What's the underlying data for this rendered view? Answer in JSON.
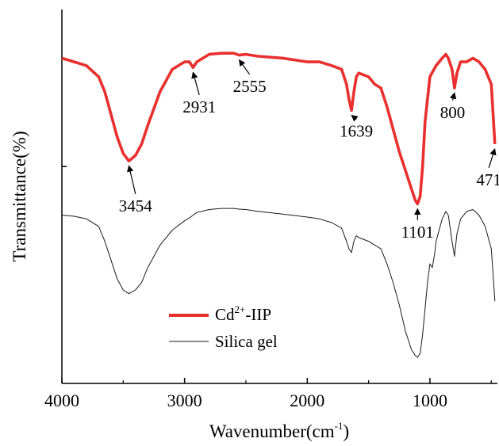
{
  "chart_data": {
    "type": "line",
    "title": "",
    "xlabel": "Wavenumber(cm",
    "xlabel_sup": "-1",
    "xlabel_close": ")",
    "ylabel": "Transmittance(%)",
    "xlim": [
      4000,
      450
    ],
    "ylim": [
      0,
      100
    ],
    "x_reversed": true,
    "xticks": [
      4000,
      3000,
      2000,
      1000
    ],
    "xtick_labels": [
      "4000",
      "3000",
      "2000",
      "1000"
    ],
    "grid": false,
    "legend_position": "lower-left",
    "series": [
      {
        "name": "Cd",
        "name_sup": "2+",
        "name_suffix": "-IIP",
        "color": "#e8312f",
        "points": [
          [
            4000,
            87
          ],
          [
            3900,
            86
          ],
          [
            3800,
            85
          ],
          [
            3700,
            82
          ],
          [
            3650,
            78
          ],
          [
            3600,
            72
          ],
          [
            3550,
            66
          ],
          [
            3500,
            61.5
          ],
          [
            3454,
            59.5
          ],
          [
            3400,
            61
          ],
          [
            3350,
            64
          ],
          [
            3300,
            69
          ],
          [
            3200,
            78
          ],
          [
            3100,
            84
          ],
          [
            3000,
            86
          ],
          [
            2960,
            86
          ],
          [
            2931,
            84.5
          ],
          [
            2900,
            86
          ],
          [
            2800,
            88
          ],
          [
            2700,
            88.3
          ],
          [
            2600,
            88.3
          ],
          [
            2555,
            87.8
          ],
          [
            2500,
            88
          ],
          [
            2400,
            87.5
          ],
          [
            2200,
            87
          ],
          [
            2000,
            86
          ],
          [
            1900,
            86
          ],
          [
            1800,
            85
          ],
          [
            1720,
            84
          ],
          [
            1680,
            80
          ],
          [
            1660,
            76
          ],
          [
            1639,
            73
          ],
          [
            1620,
            78
          ],
          [
            1600,
            82
          ],
          [
            1580,
            83
          ],
          [
            1500,
            82
          ],
          [
            1450,
            80
          ],
          [
            1400,
            79
          ],
          [
            1350,
            74
          ],
          [
            1300,
            68
          ],
          [
            1250,
            62
          ],
          [
            1200,
            57
          ],
          [
            1150,
            52
          ],
          [
            1120,
            49
          ],
          [
            1101,
            48
          ],
          [
            1080,
            50
          ],
          [
            1060,
            58
          ],
          [
            1040,
            70
          ],
          [
            1000,
            82
          ],
          [
            950,
            85
          ],
          [
            900,
            87
          ],
          [
            870,
            88
          ],
          [
            850,
            87
          ],
          [
            820,
            84
          ],
          [
            800,
            79
          ],
          [
            780,
            83
          ],
          [
            750,
            86
          ],
          [
            700,
            86
          ],
          [
            650,
            87
          ],
          [
            600,
            86
          ],
          [
            550,
            84
          ],
          [
            500,
            80
          ],
          [
            471,
            64
          ]
        ]
      },
      {
        "name": "Silica gel",
        "color": "#1a1a1a",
        "points": [
          [
            4000,
            45
          ],
          [
            3900,
            44.7
          ],
          [
            3800,
            44
          ],
          [
            3700,
            42
          ],
          [
            3650,
            38
          ],
          [
            3600,
            33
          ],
          [
            3550,
            28
          ],
          [
            3500,
            25
          ],
          [
            3454,
            24
          ],
          [
            3400,
            25
          ],
          [
            3350,
            27
          ],
          [
            3300,
            31
          ],
          [
            3200,
            37
          ],
          [
            3100,
            41
          ],
          [
            3000,
            43.5
          ],
          [
            2950,
            44.5
          ],
          [
            2931,
            45
          ],
          [
            2900,
            45.7
          ],
          [
            2800,
            46.5
          ],
          [
            2700,
            46.8
          ],
          [
            2600,
            46.8
          ],
          [
            2555,
            46.6
          ],
          [
            2500,
            46.5
          ],
          [
            2400,
            46
          ],
          [
            2200,
            45.3
          ],
          [
            2000,
            44.5
          ],
          [
            1900,
            44
          ],
          [
            1800,
            43
          ],
          [
            1720,
            41.5
          ],
          [
            1680,
            38
          ],
          [
            1660,
            36
          ],
          [
            1639,
            35
          ],
          [
            1620,
            38
          ],
          [
            1600,
            39.5
          ],
          [
            1580,
            39
          ],
          [
            1500,
            38
          ],
          [
            1450,
            37
          ],
          [
            1400,
            36
          ],
          [
            1350,
            32
          ],
          [
            1300,
            27
          ],
          [
            1250,
            21
          ],
          [
            1200,
            14
          ],
          [
            1150,
            9
          ],
          [
            1120,
            7.5
          ],
          [
            1101,
            7
          ],
          [
            1080,
            8
          ],
          [
            1060,
            13
          ],
          [
            1040,
            20
          ],
          [
            1020,
            27
          ],
          [
            1000,
            32
          ],
          [
            980,
            31
          ],
          [
            960,
            35
          ],
          [
            950,
            38
          ],
          [
            900,
            44
          ],
          [
            870,
            46
          ],
          [
            850,
            45
          ],
          [
            820,
            38
          ],
          [
            800,
            34
          ],
          [
            780,
            40
          ],
          [
            750,
            44
          ],
          [
            700,
            46
          ],
          [
            650,
            46.5
          ],
          [
            600,
            45
          ],
          [
            550,
            42
          ],
          [
            500,
            36
          ],
          [
            471,
            22
          ]
        ]
      }
    ],
    "annotations": [
      {
        "label": "3454",
        "x": 3454,
        "tip_y": 59.5,
        "text_x": 3400,
        "text_y": 46
      },
      {
        "label": "2931",
        "x": 2931,
        "tip_y": 84.5,
        "text_x": 2880,
        "text_y": 72.5
      },
      {
        "label": "2555",
        "x": 2555,
        "tip_y": 87.8,
        "text_x": 2470,
        "text_y": 78
      },
      {
        "label": "1639",
        "x": 1639,
        "tip_y": 73,
        "text_x": 1600,
        "text_y": 66
      },
      {
        "label": "800",
        "x": 800,
        "tip_y": 79,
        "text_x": 815,
        "text_y": 71
      },
      {
        "label": "1101",
        "x": 1101,
        "tip_y": 48,
        "text_x": 1101,
        "text_y": 39
      },
      {
        "label": "471",
        "x": 471,
        "tip_y": 64,
        "text_x": 520,
        "text_y": 53
      }
    ]
  }
}
